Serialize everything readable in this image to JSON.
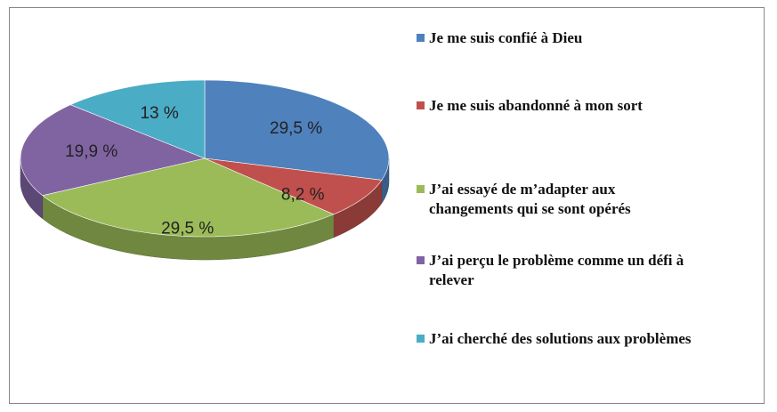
{
  "chart_data": {
    "type": "pie3d",
    "categories": [
      "Je me suis confié à Dieu",
      "Je me suis abandonné à mon sort",
      "J’ai essayé de m’adapter aux changements qui se sont opérés",
      "J’ai perçu le problème comme un défi à relever",
      "J’ai cherché des solutions aux problèmes"
    ],
    "values": [
      29.5,
      8.2,
      29.5,
      19.9,
      13
    ],
    "value_labels": [
      "29,5 %",
      "8,2 %",
      "29,5 %",
      "19,9 %",
      "13 %"
    ],
    "colors": [
      "#4f81bd",
      "#c0504d",
      "#9bbb59",
      "#8064a2",
      "#4bacc6"
    ],
    "legend": "right"
  }
}
